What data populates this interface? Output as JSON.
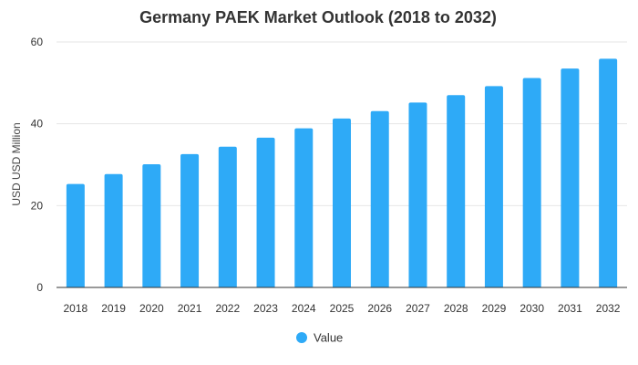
{
  "chart_data": {
    "type": "bar",
    "title": "Germany PAEK Market Outlook (2018 to 2032)",
    "xlabel": "",
    "ylabel": "USD USD Million",
    "ylim": [
      0,
      60
    ],
    "yticks": [
      0,
      20,
      40,
      60
    ],
    "grid": true,
    "legend_position": "bottom",
    "categories": [
      "2018",
      "2019",
      "2020",
      "2021",
      "2022",
      "2023",
      "2024",
      "2025",
      "2026",
      "2027",
      "2028",
      "2029",
      "2030",
      "2031",
      "2032"
    ],
    "series": [
      {
        "name": "Value",
        "color": "#2eaaf7",
        "values": [
          25.3,
          27.7,
          30.1,
          32.6,
          34.4,
          36.6,
          38.9,
          41.3,
          43.1,
          45.2,
          47.0,
          49.2,
          51.2,
          53.5,
          55.9
        ]
      }
    ]
  }
}
